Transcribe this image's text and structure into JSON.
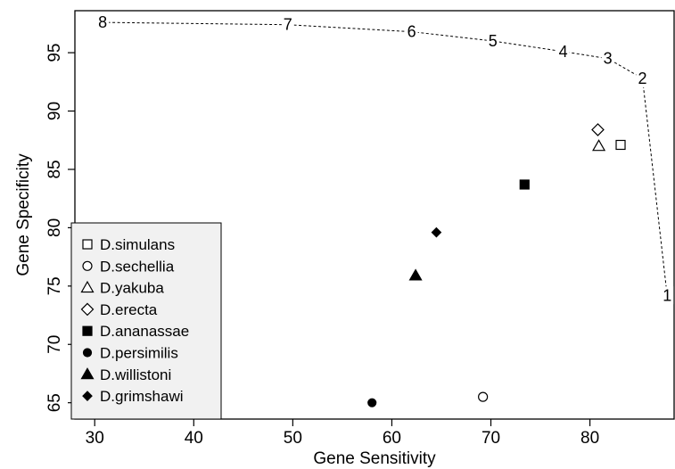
{
  "chart_data": {
    "type": "scatter",
    "xlabel": "Gene Sensitivity",
    "ylabel": "Gene Specificity",
    "xlim": [
      28,
      88.5
    ],
    "ylim": [
      63.6,
      98.6
    ],
    "x_ticks": [
      30,
      40,
      50,
      60,
      70,
      80
    ],
    "y_ticks": [
      65,
      70,
      75,
      80,
      85,
      90,
      95
    ],
    "grid": false,
    "legend_position": "bottom-left",
    "curve": {
      "style": "dashed",
      "points": [
        {
          "label": "8",
          "x": 30.8,
          "y": 97.6
        },
        {
          "label": "7",
          "x": 49.5,
          "y": 97.4
        },
        {
          "label": "6",
          "x": 62.0,
          "y": 96.8
        },
        {
          "label": "5",
          "x": 70.2,
          "y": 96.0
        },
        {
          "label": "4",
          "x": 77.3,
          "y": 95.1
        },
        {
          "label": "3",
          "x": 81.8,
          "y": 94.5
        },
        {
          "label": "2",
          "x": 85.3,
          "y": 92.8
        },
        {
          "label": "1",
          "x": 87.8,
          "y": 74.2
        }
      ]
    },
    "series": [
      {
        "name": "D.simulans",
        "marker": "open-square",
        "x": 83.1,
        "y": 87.1
      },
      {
        "name": "D.sechellia",
        "marker": "open-circle",
        "x": 69.2,
        "y": 65.5
      },
      {
        "name": "D.yakuba",
        "marker": "open-triangle",
        "x": 80.9,
        "y": 87.0
      },
      {
        "name": "D.erecta",
        "marker": "open-diamond",
        "x": 80.8,
        "y": 88.4
      },
      {
        "name": "D.ananassae",
        "marker": "filled-square",
        "x": 73.4,
        "y": 83.7
      },
      {
        "name": "D.persimilis",
        "marker": "filled-circle",
        "x": 58.0,
        "y": 65.0
      },
      {
        "name": "D.willistoni",
        "marker": "filled-triangle",
        "x": 62.4,
        "y": 75.9
      },
      {
        "name": "D.grimshawi",
        "marker": "filled-diamond",
        "x": 64.5,
        "y": 79.6
      }
    ]
  }
}
